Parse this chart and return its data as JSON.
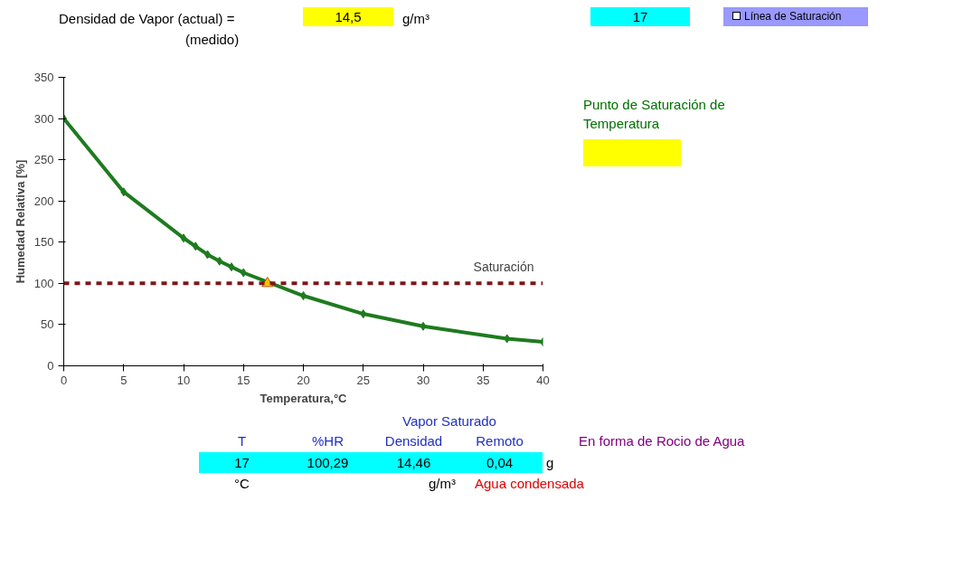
{
  "chart_data": {
    "type": "line",
    "xlabel": "Temperatura,°C",
    "ylabel": "Humedad Relativa [%]",
    "series": [
      {
        "type": "line",
        "x": [
          0,
          5,
          10,
          11,
          12,
          13,
          14,
          15,
          20,
          25,
          30,
          37,
          40
        ],
        "values": [
          300,
          211,
          155,
          145,
          135,
          127,
          120,
          113,
          85,
          63,
          48,
          33,
          29
        ],
        "color": "#1e7b1e",
        "marker": "diamond"
      },
      {
        "type": "scatter",
        "x": [
          17
        ],
        "values": [
          100
        ],
        "color": "#ffc000",
        "marker": "triangle"
      }
    ],
    "xlim": [
      0,
      40
    ],
    "xticks": [
      0,
      5,
      10,
      15,
      20,
      25,
      30,
      35,
      40
    ],
    "ylim": [
      0,
      350
    ],
    "yticks": [
      0,
      50,
      100,
      150,
      200,
      250,
      300,
      350
    ],
    "ref_lines": [
      {
        "axis": "y",
        "value": 100,
        "label": "Saturación",
        "color": "#7b1818",
        "line_style": "dashed"
      }
    ],
    "grid": false,
    "annotations": [
      "Densidad de Vapor (actual) =",
      "14,5",
      "g/m³",
      "(medido)",
      "17",
      "Línea de Saturación",
      "Punto de Saturación de Temperatura",
      "Vapor Saturado",
      "T",
      "%HR",
      "Densidad",
      "Remoto",
      "17",
      "100,29",
      "14,46",
      "0,04",
      "g",
      "°C",
      "g/m³",
      "Agua condensada",
      "En forma de Rocio de Agua"
    ]
  }
}
